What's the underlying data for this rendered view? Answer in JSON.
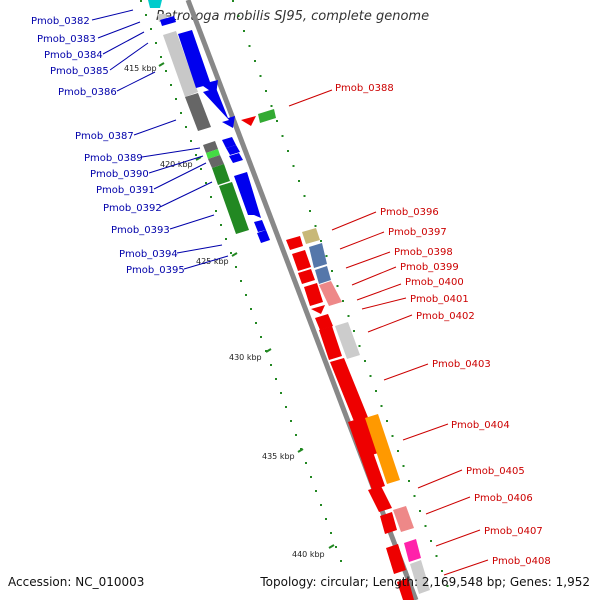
{
  "title": "Petrotoga mobilis SJ95, complete genome",
  "footer": {
    "accession": "Accession: NC_010003",
    "topology": "Topology: circular; Length: 2,169,548 bp; Genes: 1,952"
  },
  "ticks": [
    "415 kbp",
    "420 kbp",
    "425 kbp",
    "430 kbp",
    "435 kbp",
    "440 kbp"
  ],
  "colors": {
    "backbone": "#888888",
    "left_labels": "#0000aa",
    "right_labels": "#cc0000",
    "tick_marks": "#228822"
  },
  "left_genes": [
    "Pmob_0382",
    "Pmob_0383",
    "Pmob_0384",
    "Pmob_0385",
    "Pmob_0386",
    "Pmob_0387",
    "Pmob_0389",
    "Pmob_0390",
    "Pmob_0391",
    "Pmob_0392",
    "Pmob_0393",
    "Pmob_0394",
    "Pmob_0395"
  ],
  "right_genes": [
    "Pmob_0388",
    "Pmob_0396",
    "Pmob_0397",
    "Pmob_0398",
    "Pmob_0399",
    "Pmob_0400",
    "Pmob_0401",
    "Pmob_0402",
    "Pmob_0403",
    "Pmob_0404",
    "Pmob_0405",
    "Pmob_0406",
    "Pmob_0407",
    "Pmob_0408"
  ]
}
